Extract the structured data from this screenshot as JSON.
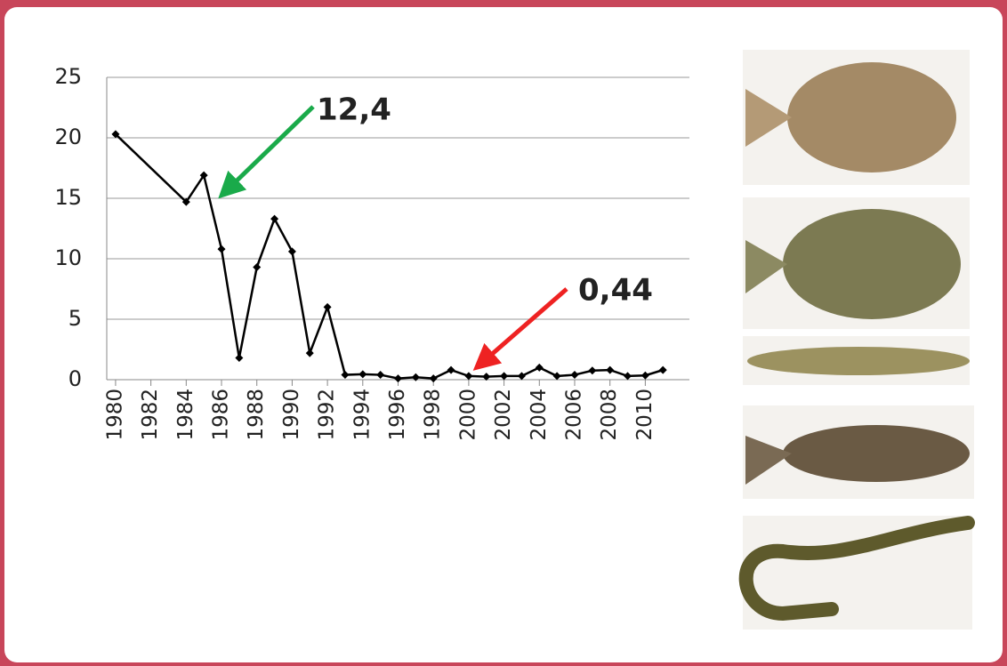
{
  "chart_data": {
    "type": "line",
    "x": [
      1980,
      1984,
      1985,
      1986,
      1987,
      1988,
      1989,
      1990,
      1991,
      1992,
      1993,
      1994,
      1995,
      1996,
      1997,
      1998,
      1999,
      2000,
      2001,
      2002,
      2003,
      2004,
      2005,
      2006,
      2007,
      2008,
      2009,
      2010,
      2011
    ],
    "values": [
      20.3,
      14.7,
      16.9,
      10.8,
      1.8,
      9.3,
      13.3,
      10.6,
      2.2,
      6.0,
      0.4,
      0.45,
      0.4,
      0.1,
      0.2,
      0.1,
      0.8,
      0.3,
      0.25,
      0.3,
      0.3,
      1.0,
      0.3,
      0.4,
      0.75,
      0.8,
      0.3,
      0.35,
      0.8
    ],
    "color": "#000000",
    "xlim": [
      1979.5,
      2012.5
    ],
    "xticks": [
      1980,
      1982,
      1984,
      1986,
      1988,
      1990,
      1992,
      1994,
      1996,
      1998,
      2000,
      2002,
      2004,
      2006,
      2008,
      2010
    ],
    "ylim": [
      0,
      25
    ],
    "yticks": [
      0,
      5,
      10,
      15,
      20,
      25
    ],
    "grid": true,
    "annotations": [
      {
        "text": "12,4",
        "color": "#1aaa4a"
      },
      {
        "text": "0,44",
        "color": "#ee2222"
      }
    ]
  }
}
